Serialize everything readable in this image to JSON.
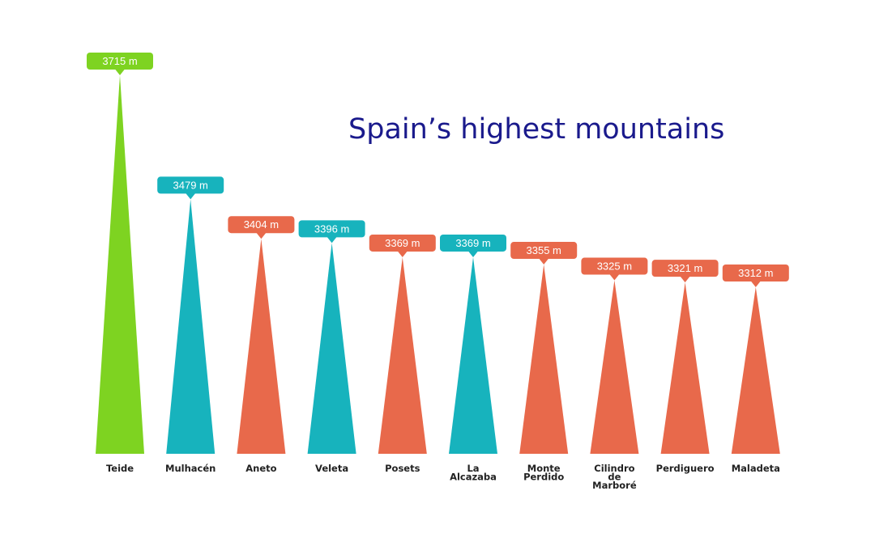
{
  "chart_data": {
    "type": "bar",
    "title": "Spain’s highest mountains",
    "xlabel": "",
    "ylabel": "",
    "categories": [
      "Teide",
      "Mulhacén",
      "Aneto",
      "Veleta",
      "Posets",
      "La Alcazaba",
      "Monte Perdido",
      "Cilindro de Marboré",
      "Perdiguero",
      "Maladeta"
    ],
    "category_lines": [
      [
        "Teide"
      ],
      [
        "Mulhacén"
      ],
      [
        "Aneto"
      ],
      [
        "Veleta"
      ],
      [
        "Posets"
      ],
      [
        "La",
        "Alcazaba"
      ],
      [
        "Monte",
        "Perdido"
      ],
      [
        "Cilindro",
        "de",
        "Marboré"
      ],
      [
        "Perdiguero"
      ],
      [
        "Maladeta"
      ]
    ],
    "values": [
      3715,
      3479,
      3404,
      3396,
      3369,
      3369,
      3355,
      3325,
      3321,
      3312
    ],
    "data_labels": [
      "3715 m",
      "3479 m",
      "3404 m",
      "3396 m",
      "3369 m",
      "3369 m",
      "3355 m",
      "3325 m",
      "3321 m",
      "3312 m"
    ],
    "colors": [
      "#7ed321",
      "#17b3bd",
      "#e8694b",
      "#17b3bd",
      "#e8694b",
      "#17b3bd",
      "#e8694b",
      "#e8694b",
      "#e8694b",
      "#e8694b"
    ],
    "ylim": [
      0,
      3715
    ],
    "grid": false,
    "legend": "none",
    "mark_shape": "triangle"
  }
}
